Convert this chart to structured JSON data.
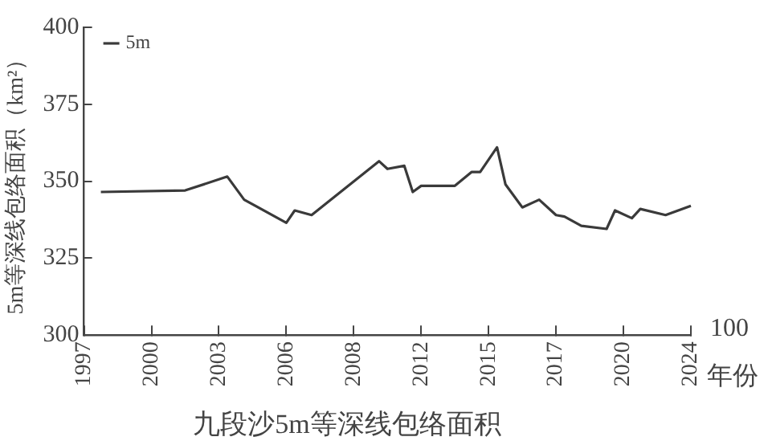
{
  "chart_data": {
    "type": "line",
    "title": "九段沙5m等深线包络面积",
    "xlabel": "年份",
    "ylabel": "5m等深线包络面积（km²）",
    "annotations": [
      "100"
    ],
    "categories": [
      "1997",
      null,
      null,
      null,
      null,
      null,
      null,
      null,
      "2000",
      null,
      null,
      null,
      null,
      null,
      null,
      null,
      "2003",
      null,
      null,
      null,
      null,
      null,
      null,
      null,
      "2006",
      null,
      null,
      null,
      null,
      null,
      null,
      null,
      "2008",
      null,
      null,
      null,
      null,
      null,
      null,
      null,
      "2012",
      null,
      null,
      null,
      null,
      null,
      null,
      null,
      "2015",
      null,
      null,
      null,
      null,
      null,
      null,
      null,
      "2017",
      null,
      null,
      null,
      null,
      null,
      null,
      null,
      "2020",
      null,
      null,
      null,
      null,
      null,
      null,
      null,
      "2024"
    ],
    "ylim": [
      300,
      400
    ],
    "yticks": [
      300,
      325,
      350,
      375,
      400
    ],
    "series": [
      {
        "name": "5m",
        "color": "#3a3a3a",
        "values": [
          null,
          null,
          346.5,
          null,
          null,
          null,
          null,
          null,
          null,
          null,
          null,
          null,
          347,
          null,
          null,
          null,
          null,
          351.5,
          null,
          344,
          null,
          null,
          null,
          null,
          336.5,
          340.5,
          null,
          339,
          null,
          null,
          null,
          null,
          null,
          null,
          null,
          356.5,
          354,
          null,
          355,
          346.5,
          348.5,
          null,
          null,
          null,
          348.5,
          null,
          353,
          353,
          null,
          361,
          349,
          null,
          341.5,
          null,
          344,
          null,
          339,
          338.5,
          null,
          335.5,
          null,
          null,
          334.5,
          340.5,
          null,
          338,
          341,
          null,
          null,
          339,
          null,
          null,
          342
        ]
      }
    ],
    "legend": "top left",
    "marker": "none",
    "line_style": "solid"
  }
}
